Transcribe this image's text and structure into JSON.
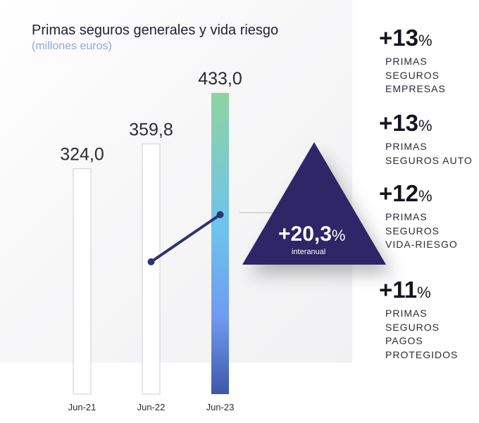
{
  "title": "Primas seguros generales y vida riesgo",
  "subtitle": "(millones euros)",
  "chart_data": {
    "type": "bar",
    "title": "Primas seguros generales y vida riesgo",
    "subtitle": "(millones euros)",
    "categories": [
      "Jun-21",
      "Jun-22",
      "Jun-23"
    ],
    "values": [
      324.0,
      359.8,
      433.0
    ],
    "value_labels": [
      "324,0",
      "359,8",
      "433,0"
    ],
    "ylim": [
      0,
      433.0
    ],
    "grid": false,
    "highlight_colors": {
      "top": "#8fd3a0",
      "middle": "#6ec3ee",
      "bottom": "#3f57a8"
    }
  },
  "growth": {
    "value": "+20,3",
    "unit": "%",
    "label": "interanual",
    "color": "#2f2566"
  },
  "stats": [
    {
      "value": "+13",
      "unit": "%",
      "lines": [
        "PRIMAS",
        "SEGUROS",
        "EMPRESAS"
      ]
    },
    {
      "value": "+13",
      "unit": "%",
      "lines": [
        "PRIMAS",
        "SEGUROS AUTO"
      ]
    },
    {
      "value": "+12",
      "unit": "%",
      "lines": [
        "PRIMAS",
        "SEGUROS",
        "VIDA-RIESGO"
      ]
    },
    {
      "value": "+11",
      "unit": "%",
      "lines": [
        "PRIMAS",
        "SEGUROS",
        "PAGOS",
        "PROTEGIDOS"
      ]
    }
  ]
}
